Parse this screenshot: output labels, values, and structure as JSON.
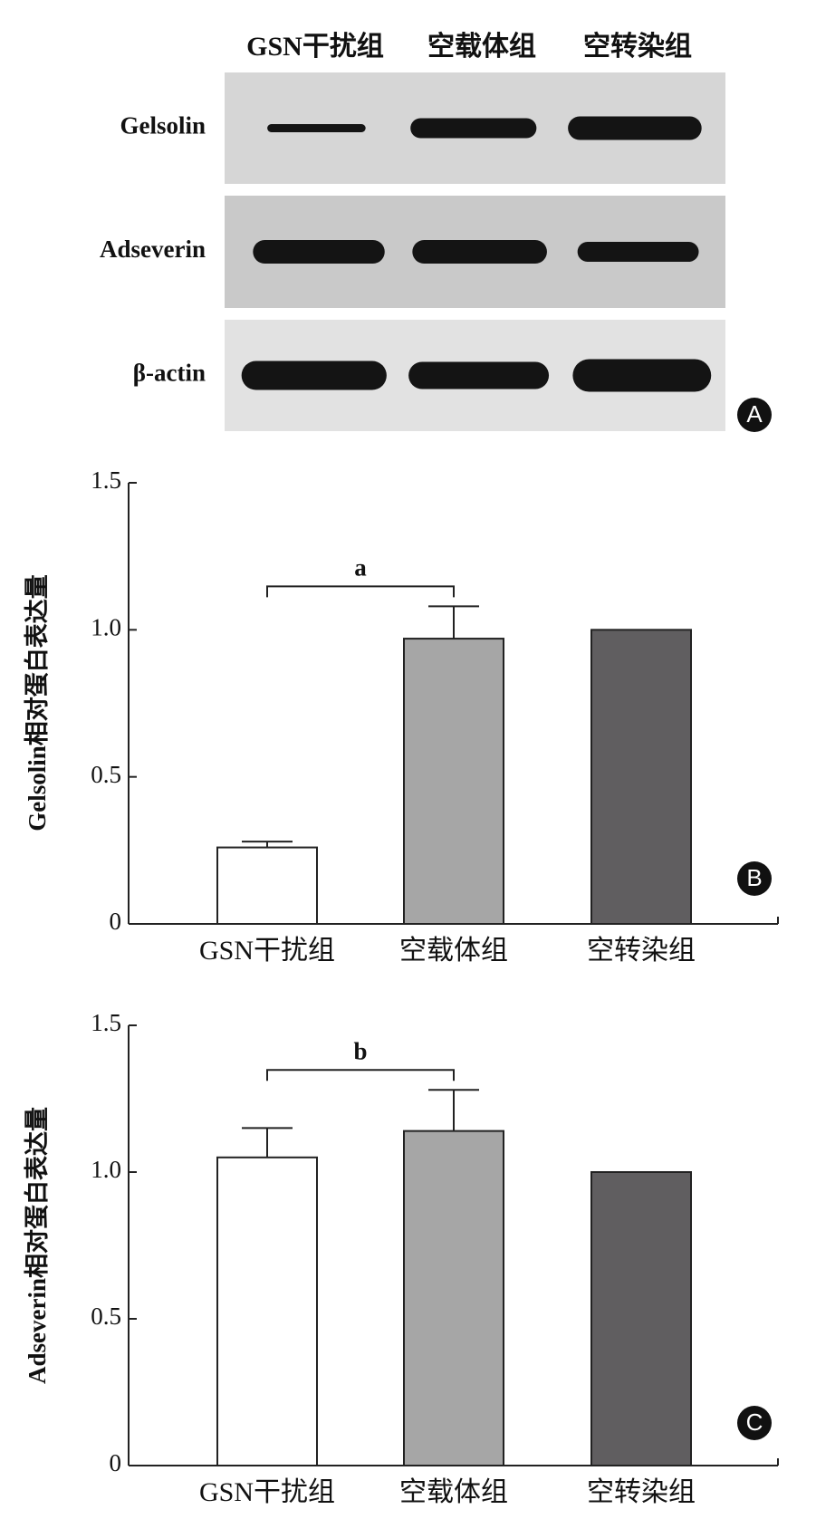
{
  "blot": {
    "columns": [
      "GSN干扰组",
      "空载体组",
      "空转染组"
    ],
    "rows": [
      "Gelsolin",
      "Adseverin",
      "β-actin"
    ],
    "panel_label": "A"
  },
  "chart_data": [
    {
      "type": "bar",
      "panel_label": "B",
      "y_label": "Gelsolin相对蛋白表达量",
      "categories": [
        "GSN干扰组",
        "空载体组",
        "空转染组"
      ],
      "values": [
        0.26,
        0.97,
        1.0
      ],
      "errors": [
        0.02,
        0.11,
        null
      ],
      "colors": [
        "#ffffff",
        "#a6a6a6",
        "#605e60"
      ],
      "ylim": [
        0,
        1.5
      ],
      "yticks": [
        0,
        0.5,
        {
          "value": 1,
          "label": "1.0"
        },
        1.5
      ],
      "annotation": {
        "text": "a",
        "from": 0,
        "to": 1
      }
    },
    {
      "type": "bar",
      "panel_label": "C",
      "y_label": "Adseverin相对蛋白表达量",
      "categories": [
        "GSN干扰组",
        "空载体组",
        "空转染组"
      ],
      "values": [
        1.05,
        1.14,
        1.0
      ],
      "errors": [
        0.1,
        0.14,
        null
      ],
      "colors": [
        "#ffffff",
        "#a6a6a6",
        "#605e60"
      ],
      "ylim": [
        0,
        1.5
      ],
      "yticks": [
        0,
        0.5,
        {
          "value": 1,
          "label": "1.0"
        },
        1.5
      ],
      "annotation": {
        "text": "b",
        "from": 0,
        "to": 1
      }
    }
  ]
}
